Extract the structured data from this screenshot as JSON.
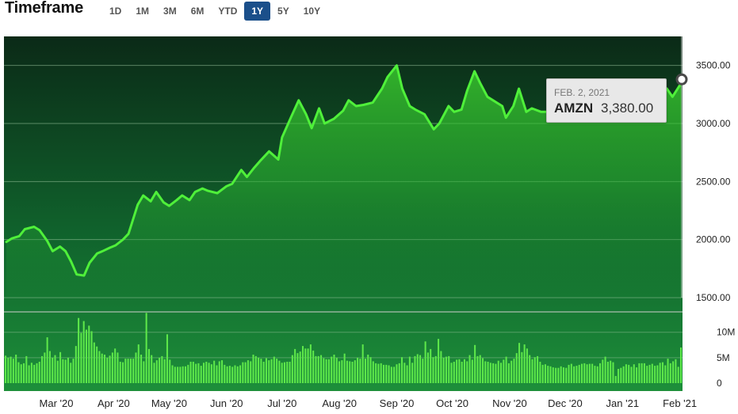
{
  "header": {
    "title": "Timeframe",
    "tabs": [
      {
        "label": "1D",
        "active": false
      },
      {
        "label": "1M",
        "active": false
      },
      {
        "label": "3M",
        "active": false
      },
      {
        "label": "6M",
        "active": false
      },
      {
        "label": "YTD",
        "active": false
      },
      {
        "label": "1Y",
        "active": true
      },
      {
        "label": "5Y",
        "active": false
      },
      {
        "label": "10Y",
        "active": false
      }
    ]
  },
  "tooltip": {
    "date": "FEB. 2, 2021",
    "ticker": "AMZN",
    "value": "3,380.00"
  },
  "colors": {
    "line": "#4ff03a",
    "active_tab": "#1b4f8a",
    "bar": "#5ee84a"
  },
  "chart_data": [
    {
      "type": "area",
      "series": [
        {
          "points": [
            [
              "2020-02-03",
              1980
            ],
            [
              "2020-02-06",
              2010
            ],
            [
              "2020-02-10",
              2030
            ],
            [
              "2020-02-13",
              2090
            ],
            [
              "2020-02-18",
              2110
            ],
            [
              "2020-02-21",
              2080
            ],
            [
              "2020-02-25",
              1990
            ],
            [
              "2020-02-28",
              1900
            ],
            [
              "2020-03-03",
              1940
            ],
            [
              "2020-03-06",
              1900
            ],
            [
              "2020-03-09",
              1810
            ],
            [
              "2020-03-12",
              1700
            ],
            [
              "2020-03-16",
              1690
            ],
            [
              "2020-03-19",
              1800
            ],
            [
              "2020-03-23",
              1880
            ],
            [
              "2020-03-26",
              1900
            ],
            [
              "2020-03-30",
              1930
            ],
            [
              "2020-04-02",
              1950
            ],
            [
              "2020-04-06",
              2000
            ],
            [
              "2020-04-09",
              2050
            ],
            [
              "2020-04-14",
              2300
            ],
            [
              "2020-04-17",
              2380
            ],
            [
              "2020-04-21",
              2330
            ],
            [
              "2020-04-24",
              2410
            ],
            [
              "2020-04-28",
              2320
            ],
            [
              "2020-05-01",
              2290
            ],
            [
              "2020-05-05",
              2340
            ],
            [
              "2020-05-08",
              2380
            ],
            [
              "2020-05-12",
              2340
            ],
            [
              "2020-05-15",
              2410
            ],
            [
              "2020-05-19",
              2440
            ],
            [
              "2020-05-22",
              2420
            ],
            [
              "2020-05-27",
              2400
            ],
            [
              "2020-06-01",
              2460
            ],
            [
              "2020-06-04",
              2480
            ],
            [
              "2020-06-09",
              2600
            ],
            [
              "2020-06-12",
              2540
            ],
            [
              "2020-06-16",
              2620
            ],
            [
              "2020-06-19",
              2675
            ],
            [
              "2020-06-24",
              2760
            ],
            [
              "2020-06-29",
              2690
            ],
            [
              "2020-07-01",
              2880
            ],
            [
              "2020-07-06",
              3060
            ],
            [
              "2020-07-10",
              3200
            ],
            [
              "2020-07-14",
              3080
            ],
            [
              "2020-07-17",
              2960
            ],
            [
              "2020-07-21",
              3130
            ],
            [
              "2020-07-24",
              3000
            ],
            [
              "2020-07-29",
              3040
            ],
            [
              "2020-08-03",
              3110
            ],
            [
              "2020-08-06",
              3200
            ],
            [
              "2020-08-10",
              3150
            ],
            [
              "2020-08-14",
              3160
            ],
            [
              "2020-08-19",
              3180
            ],
            [
              "2020-08-24",
              3300
            ],
            [
              "2020-08-27",
              3400
            ],
            [
              "2020-09-01",
              3500
            ],
            [
              "2020-09-04",
              3300
            ],
            [
              "2020-09-08",
              3150
            ],
            [
              "2020-09-11",
              3120
            ],
            [
              "2020-09-16",
              3080
            ],
            [
              "2020-09-21",
              2950
            ],
            [
              "2020-09-24",
              3000
            ],
            [
              "2020-09-29",
              3150
            ],
            [
              "2020-10-02",
              3100
            ],
            [
              "2020-10-06",
              3120
            ],
            [
              "2020-10-09",
              3280
            ],
            [
              "2020-10-13",
              3450
            ],
            [
              "2020-10-16",
              3350
            ],
            [
              "2020-10-20",
              3230
            ],
            [
              "2020-10-23",
              3200
            ],
            [
              "2020-10-28",
              3150
            ],
            [
              "2020-10-30",
              3050
            ],
            [
              "2020-11-03",
              3150
            ],
            [
              "2020-11-06",
              3300
            ],
            [
              "2020-11-10",
              3100
            ],
            [
              "2020-11-13",
              3130
            ],
            [
              "2020-11-18",
              3100
            ],
            [
              "2020-11-23",
              3100
            ],
            [
              "2020-11-27",
              3190
            ],
            [
              "2020-12-02",
              3220
            ],
            [
              "2020-12-07",
              3160
            ],
            [
              "2020-12-10",
              3100
            ],
            [
              "2020-12-15",
              3160
            ],
            [
              "2020-12-18",
              3200
            ],
            [
              "2020-12-23",
              3180
            ],
            [
              "2020-12-29",
              3300
            ],
            [
              "2021-01-04",
              3200
            ],
            [
              "2021-01-08",
              3100
            ],
            [
              "2021-01-12",
              3120
            ],
            [
              "2021-01-15",
              3100
            ],
            [
              "2021-01-20",
              3250
            ],
            [
              "2021-01-25",
              3300
            ],
            [
              "2021-01-28",
              3230
            ],
            [
              "2021-02-01",
              3330
            ],
            [
              "2021-02-02",
              3380
            ]
          ]
        }
      ],
      "ylim": [
        1500,
        3750
      ],
      "yticks": [
        "1500.00",
        "2000.00",
        "2500.00",
        "3000.00",
        "3500.00"
      ],
      "ytick_values": [
        1500,
        2000,
        2500,
        3000,
        3500
      ],
      "grid": true
    },
    {
      "type": "bar",
      "series": [
        {
          "values": [
            5.4,
            5.0,
            5.2,
            4.8,
            5.6,
            4.1,
            3.7,
            3.9,
            5.3,
            3.5,
            4.0,
            3.6,
            3.9,
            4.2,
            5.3,
            6.0,
            9.0,
            6.3,
            5.0,
            5.5,
            4.4,
            6.1,
            4.7,
            4.6,
            5.0,
            4.0,
            4.8,
            7.3,
            12.8,
            9.9,
            12.2,
            10.5,
            11.3,
            10.2,
            8.0,
            7.2,
            6.3,
            5.8,
            5.6,
            5.0,
            5.4,
            6.0,
            6.8,
            6.0,
            4.2,
            4.1,
            4.8,
            4.8,
            4.8,
            4.8,
            6.0,
            7.6,
            5.6,
            4.3,
            13.8,
            6.7,
            5.5,
            4.0,
            4.5,
            5.0,
            5.3,
            4.7,
            9.6,
            4.6,
            3.5,
            3.2,
            3.2,
            3.2,
            3.3,
            3.3,
            3.6,
            4.2,
            4.2,
            3.8,
            3.9,
            3.4,
            4.0,
            4.2,
            4.0,
            3.7,
            4.4,
            3.5,
            4.3,
            4.5,
            3.6,
            3.3,
            3.4,
            3.2,
            3.5,
            3.3,
            3.5,
            4.1,
            4.1,
            4.5,
            4.3,
            5.6,
            5.3,
            5.0,
            4.8,
            4.2,
            4.9,
            4.5,
            4.7,
            5.2,
            4.8,
            4.4,
            4.0,
            4.1,
            4.2,
            4.2,
            5.5,
            6.7,
            5.9,
            6.2,
            7.3,
            6.8,
            6.8,
            7.6,
            6.4,
            5.3,
            5.3,
            5.5,
            4.9,
            4.7,
            4.7,
            5.2,
            5.6,
            5.0,
            4.3,
            4.5,
            5.8,
            4.4,
            4.3,
            4.2,
            4.5,
            5.0,
            4.8,
            7.6,
            4.8,
            5.6,
            5.1,
            4.3,
            3.9,
            3.8,
            3.9,
            3.6,
            3.6,
            3.5,
            3.2,
            3.2,
            3.7,
            3.9,
            5.1,
            4.0,
            3.5,
            5.2,
            4.0,
            5.3,
            5.7,
            5.5,
            4.8,
            8.2,
            6.0,
            6.7,
            5.1,
            5.3,
            8.7,
            6.3,
            5.0,
            5.2,
            5.3,
            4.0,
            4.2,
            4.6,
            4.7,
            4.2,
            4.7,
            4.3,
            5.5,
            4.6,
            7.5,
            5.3,
            5.5,
            4.9,
            4.3,
            4.2,
            4.0,
            3.9,
            3.8,
            4.4,
            4.0,
            4.6,
            5.2,
            3.9,
            4.4,
            4.8,
            5.9,
            7.9,
            6.1,
            7.6,
            6.8,
            5.5,
            4.7,
            5.1,
            5.3,
            4.2,
            3.6,
            3.7,
            3.4,
            3.3,
            3.1,
            3.0,
            3.0,
            3.3,
            3.1,
            3.0,
            3.6,
            3.8,
            3.3,
            3.4,
            3.6,
            3.8,
            3.9,
            3.7,
            3.8,
            3.8,
            3.4,
            3.3,
            3.9,
            4.6,
            5.2,
            4.2,
            4.4,
            4.1,
            1.4,
            2.8,
            3.0,
            3.3,
            3.7,
            3.6,
            3.2,
            3.7,
            3.1,
            3.9,
            3.9,
            3.9,
            3.4,
            3.6,
            3.8,
            3.4,
            3.5,
            4.0,
            4.1,
            3.5,
            4.8,
            3.9,
            4.3,
            4.7,
            3.2,
            7.0
          ]
        }
      ],
      "yticks": [
        "0",
        "5M",
        "10M"
      ],
      "ytick_values": [
        0,
        5,
        10
      ],
      "ylim": [
        0,
        14
      ],
      "xticks": [
        "Mar '20",
        "Apr '20",
        "May '20",
        "Jun '20",
        "Jul '20",
        "Aug '20",
        "Sep '20",
        "Oct '20",
        "Nov '20",
        "Dec '20",
        "Jan '21",
        "Feb '21"
      ],
      "xtick_dates": [
        "2020-03-01",
        "2020-04-01",
        "2020-05-01",
        "2020-06-01",
        "2020-07-01",
        "2020-08-01",
        "2020-09-01",
        "2020-10-01",
        "2020-11-01",
        "2020-12-01",
        "2021-01-01",
        "2021-02-01"
      ]
    }
  ]
}
